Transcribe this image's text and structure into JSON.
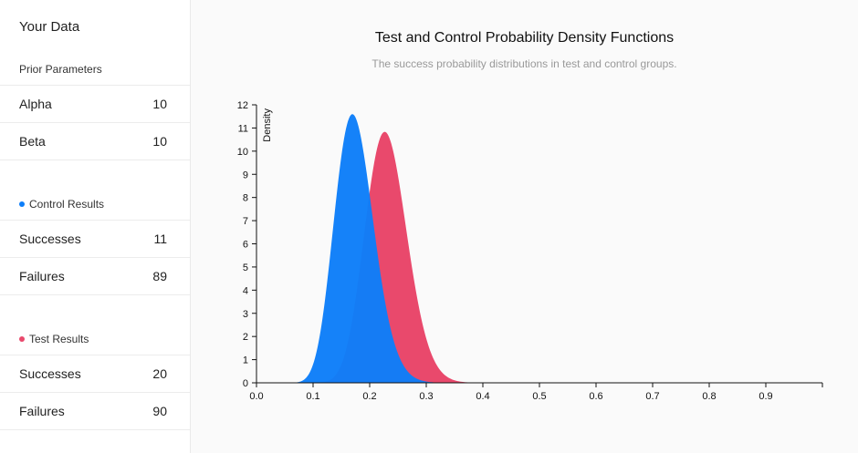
{
  "sidebar": {
    "title": "Your Data",
    "prior": {
      "label": "Prior Parameters",
      "rows": [
        {
          "label": "Alpha",
          "value": "10"
        },
        {
          "label": "Beta",
          "value": "10"
        }
      ]
    },
    "control": {
      "label": "Control Results",
      "rows": [
        {
          "label": "Successes",
          "value": "11"
        },
        {
          "label": "Failures",
          "value": "89"
        }
      ]
    },
    "test": {
      "label": "Test Results",
      "rows": [
        {
          "label": "Successes",
          "value": "20"
        },
        {
          "label": "Failures",
          "value": "90"
        }
      ]
    }
  },
  "colors": {
    "control": "#0d7ef9",
    "test": "#e9496c"
  },
  "chart_data": {
    "type": "area",
    "title": "Test and Control Probability Density Functions",
    "subtitle": "The success probability distributions in test and control groups.",
    "ylabel": "Density",
    "xlabel": "",
    "xlim": [
      0,
      1
    ],
    "ylim": [
      0,
      12
    ],
    "xticks": [
      "0.0",
      "0.1",
      "0.2",
      "0.3",
      "0.4",
      "0.5",
      "0.6",
      "0.7",
      "0.8",
      "0.9"
    ],
    "yticks": [
      "0",
      "1",
      "2",
      "3",
      "4",
      "5",
      "6",
      "7",
      "8",
      "9",
      "10",
      "11",
      "12"
    ],
    "grid": false,
    "series": [
      {
        "distribution": "beta",
        "alpha": 21,
        "beta": 99,
        "peak": [
          0.168,
          11.5
        ]
      },
      {
        "distribution": "beta",
        "alpha": 30,
        "beta": 100,
        "peak": [
          0.225,
          10.8
        ]
      }
    ]
  }
}
